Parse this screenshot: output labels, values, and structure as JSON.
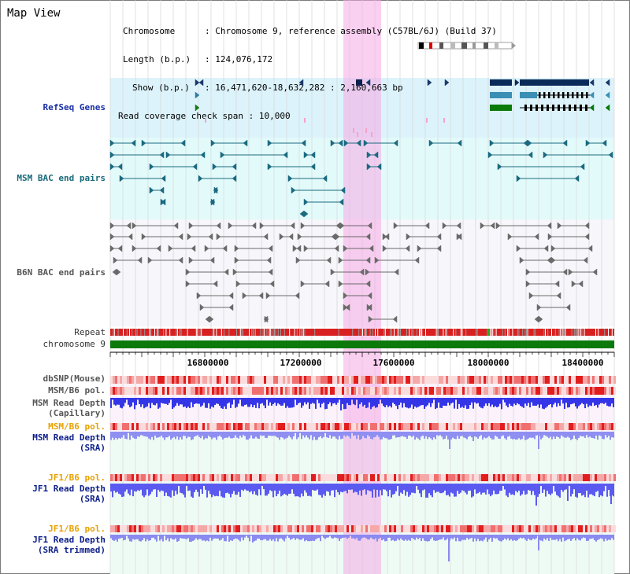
{
  "title": "Map View",
  "info": {
    "chromosome_label": "Chromosome",
    "chromosome_value": "Chromosome 9, reference assembly (C57BL/6J) (Build 37)",
    "length_label": "Length (b.p.)",
    "length_value": "124,076,172",
    "show_label": "Show (b.p.)",
    "show_value": "16,471,620-18,632,282 : 2,160,663 bp",
    "coverage_label": "Read coverage check span",
    "coverage_value": "10,000"
  },
  "tracks": {
    "refseq": "RefSeq Genes",
    "msm_bac": "MSM BAC end pairs",
    "b6n_bac": "B6N BAC end pairs",
    "repeat": "Repeat",
    "chromosome": "chromosome 9",
    "dbsnp": "dbSNP(Mouse)",
    "msm_b6_pol_1": "MSM/B6 pol.",
    "msm_depth_cap_1": "MSM Read Depth",
    "msm_depth_cap_2": "(Capillary)",
    "msm_b6_pol_2": "MSM/B6 pol.",
    "msm_depth_sra_1": "MSM Read Depth",
    "msm_depth_sra_2": "(SRA)",
    "jf1_b6_pol_1": "JF1/B6 pol.",
    "jf1_depth_sra_1": "JF1 Read Depth",
    "jf1_depth_sra_2": "(SRA)",
    "jf1_b6_pol_2": "JF1/B6 pol.",
    "jf1_depth_trim_1": "JF1 Read Depth",
    "jf1_depth_trim_2": "(SRA trimmed)"
  },
  "axis": {
    "ticks": [
      "16800000",
      "17200000",
      "17600000",
      "18000000",
      "18400000"
    ]
  },
  "colors": {
    "refseq_bg": "#dcf3fb",
    "msm_bg": "#e2fafa",
    "highlight": "#f5aae6",
    "chromosome_bar": "#0b7a0b",
    "repeat_red": "#d91a1a",
    "depth_blue": "#3a3af0",
    "depth_light": "#9a9af5"
  }
}
